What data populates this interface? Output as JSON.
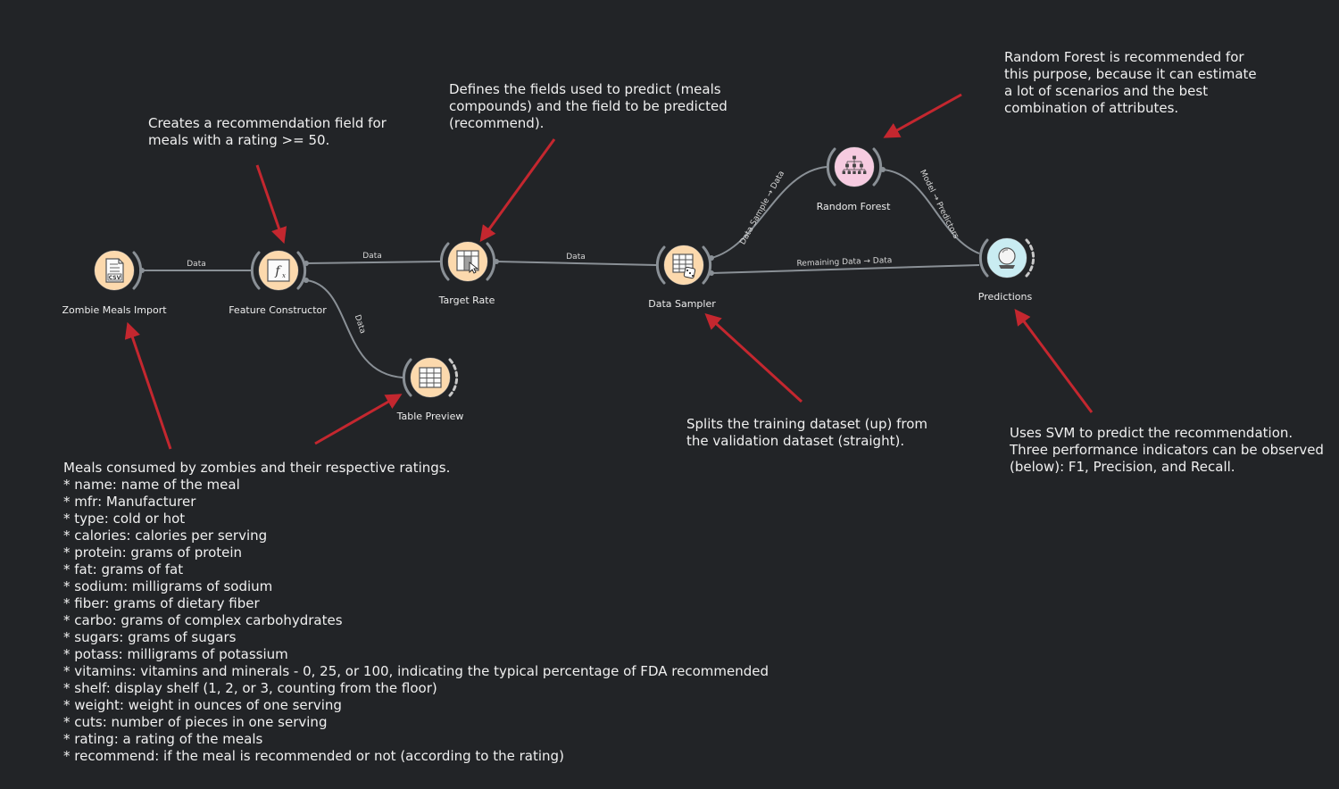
{
  "nodes": {
    "zombie_meals_import": {
      "label": "Zombie Meals Import",
      "icon": "csv-file-icon"
    },
    "feature_constructor": {
      "label": "Feature Constructor",
      "icon": "function-icon"
    },
    "target_rate": {
      "label": "Target Rate",
      "icon": "select-columns-icon"
    },
    "table_preview": {
      "label": "Table Preview",
      "icon": "table-icon"
    },
    "data_sampler": {
      "label": "Data Sampler",
      "icon": "data-sampler-icon"
    },
    "random_forest": {
      "label": "Random Forest",
      "icon": "tree-icon"
    },
    "predictions": {
      "label": "Predictions",
      "icon": "crystal-ball-icon"
    }
  },
  "links": {
    "import_to_feature": "Data",
    "feature_to_target": "Data",
    "feature_to_table": "Data",
    "target_to_sampler": "Data",
    "sampler_to_forest": "Data Sample → Data",
    "sampler_to_predictions": "Remaining Data → Data",
    "forest_to_predictions": "Model → Predictors"
  },
  "annotations": {
    "feature_constructor": "Creates a recommendation field for\nmeals with a rating >= 50.",
    "target_rate": "Defines the fields used to predict (meals\ncompounds) and the field to be predicted\n(recommend).",
    "random_forest": "Random Forest is recommended for\nthis purpose, because it can estimate\na lot of scenarios and the best\ncombination of attributes.",
    "data_sampler": "Splits the training dataset (up) from\nthe validation dataset (straight).",
    "predictions": "Uses SVM to predict the recommendation.\nThree performance indicators can be observed\n(below): F1, Precision, and Recall.",
    "zombie_meals": "Meals consumed by zombies and their respective ratings.\n* name: name of the meal\n* mfr: Manufacturer\n* type: cold or hot\n* calories: calories per serving\n* protein: grams of protein\n* fat: grams of fat\n* sodium: milligrams of sodium\n* fiber: grams of dietary fiber\n* carbo: grams of complex carbohydrates\n* sugars: grams of sugars\n* potass: milligrams of potassium\n* vitamins: vitamins and minerals - 0, 25, or 100, indicating the typical percentage of FDA recommended\n* shelf: display shelf (1, 2, or 3, counting from the floor)\n* weight: weight in ounces of one serving\n* cuts: number of pieces in one serving\n* rating: a rating of the meals\n* recommend: if the meal is recommended or not (according to the rating)"
  },
  "colors": {
    "background": "#222427",
    "node_data": "#fcd9ad",
    "node_model": "#f6cbe0",
    "node_eval": "#c9ecf2",
    "link": "#8a9096",
    "arrow": "#c4272f"
  }
}
